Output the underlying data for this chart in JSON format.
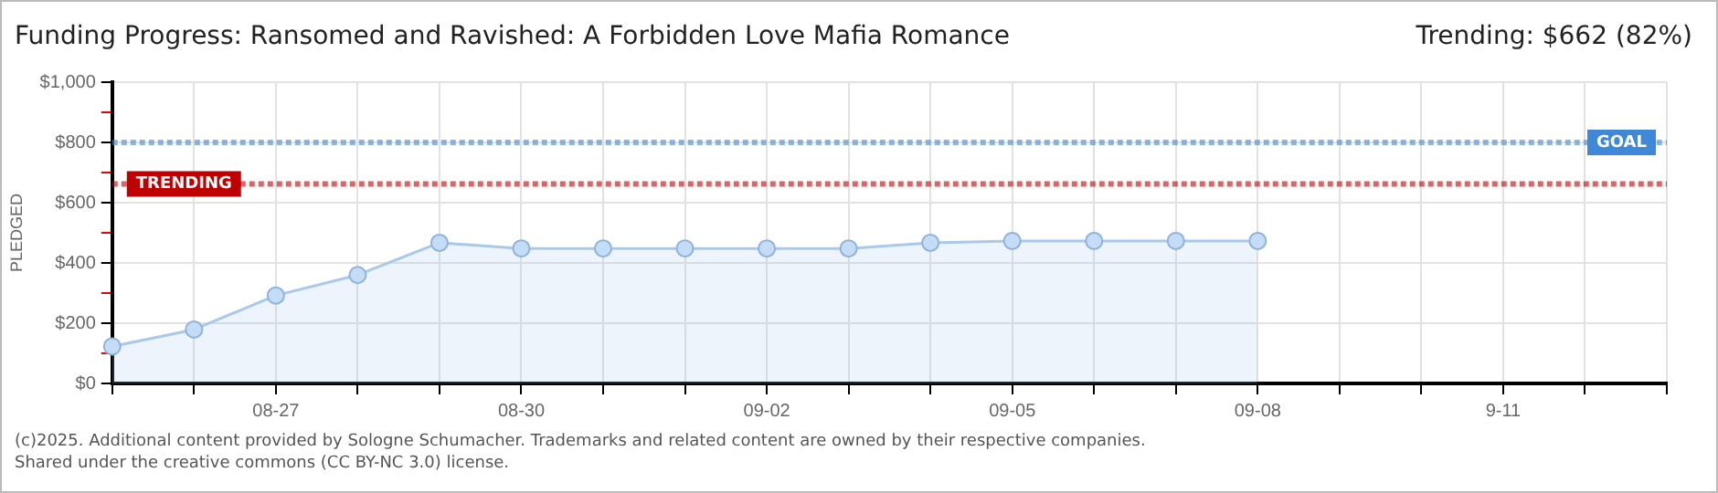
{
  "chart_data": {
    "type": "area",
    "title": "Funding Progress: Ransomed and Ravished: A Forbidden Love Mafia Romance",
    "subtitle": "Trending: $662 (82%)",
    "ylabel": "PLEDGED",
    "categories": [
      null,
      null,
      "08-27",
      null,
      null,
      "08-30",
      null,
      null,
      "09-02",
      null,
      null,
      "09-05",
      null,
      null,
      "09-08",
      null,
      null,
      "9-11",
      null,
      null
    ],
    "series": [
      {
        "color": "#a8c8ec",
        "values": [
          123,
          179,
          292,
          360,
          467,
          448,
          448,
          448,
          448,
          448,
          467,
          473,
          473,
          473,
          473,
          null,
          null,
          null,
          null,
          null
        ]
      }
    ],
    "ylim": [
      0,
      1000
    ],
    "yticks": [
      {
        "value": 0,
        "label": "$0"
      },
      {
        "value": 100,
        "label": null
      },
      {
        "value": 200,
        "label": "$200"
      },
      {
        "value": 300,
        "label": null
      },
      {
        "value": 400,
        "label": "$400"
      },
      {
        "value": 500,
        "label": null
      },
      {
        "value": 600,
        "label": "$600"
      },
      {
        "value": 700,
        "label": null
      },
      {
        "value": 800,
        "label": "$800"
      },
      {
        "value": 900,
        "label": null
      },
      {
        "value": 1000,
        "label": "$1,000"
      }
    ],
    "ref_lines": [
      {
        "axis": "y",
        "value": 800,
        "label": "GOAL",
        "color": "#3f88d8",
        "line_style": "dotted"
      },
      {
        "axis": "y",
        "value": 662,
        "label": "TRENDING",
        "color": "#c00000",
        "line_style": "dotted"
      }
    ],
    "annotations": [
      "(c)2025. Additional content provided by Sologne Schumacher. Trademarks and related content are owned by their respective companies.",
      "Shared under the creative commons (CC BY-NC 3.0) license."
    ],
    "grid": true,
    "legend": false,
    "marker": "circle"
  }
}
